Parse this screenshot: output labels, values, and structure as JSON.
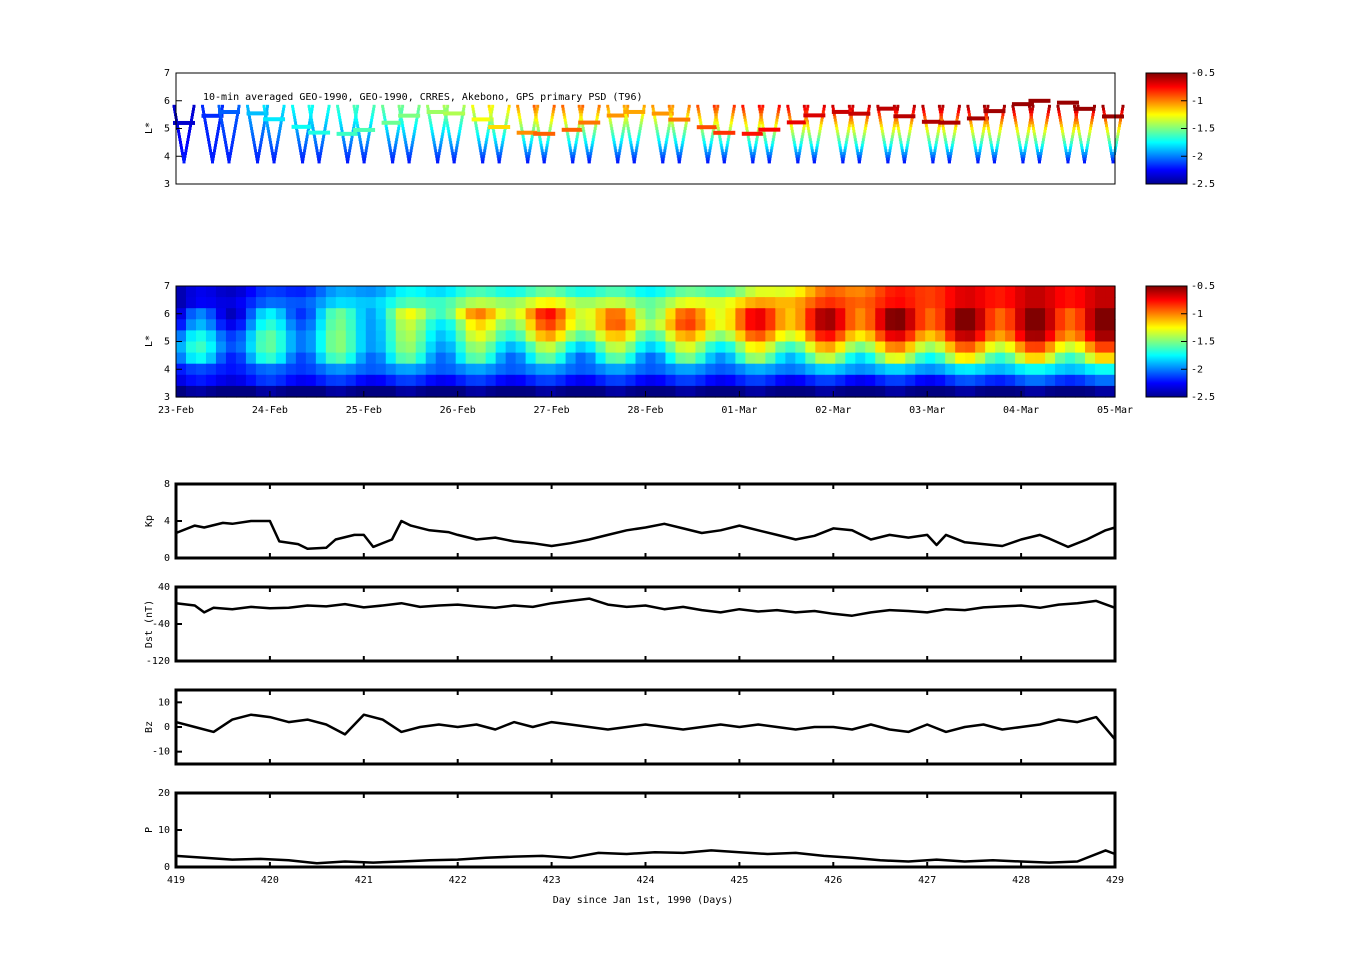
{
  "chart_data": [
    {
      "type": "heatmap",
      "title": "10-min averaged GEO-1990, GEO-1990, CRRES, Akebono, GPS  primary PSD (T96)",
      "ylabel": "L*",
      "ylim": [
        3,
        7
      ],
      "yticks": [
        "3",
        "4",
        "5",
        "6",
        "7"
      ],
      "colorbar": {
        "range": [
          -2.5,
          -0.5
        ],
        "ticks": [
          "-0.5",
          "-1",
          "-1.5",
          "-2",
          "-2.5"
        ]
      },
      "l_levels": [
        5.8,
        5.7,
        5.6,
        5.5,
        5.4,
        5.3,
        5.2,
        5.1,
        5.0,
        4.9,
        4.8,
        4.7,
        4.6,
        4.5,
        4.4,
        4.3,
        4.2,
        4.1,
        4.0,
        3.9,
        3.8
      ],
      "top_psd_by_day": [
        {
          "day": "23-Feb",
          "value": -2.4
        },
        {
          "day": "24-Feb",
          "value": -1.8
        },
        {
          "day": "25-Feb",
          "value": -1.6
        },
        {
          "day": "26-Feb",
          "value": -1.4
        },
        {
          "day": "27-Feb",
          "value": -0.9
        },
        {
          "day": "28-Feb",
          "value": -1.1
        },
        {
          "day": "01-Mar",
          "value": -0.8
        },
        {
          "day": "02-Mar",
          "value": -0.65
        },
        {
          "day": "03-Mar",
          "value": -0.6
        },
        {
          "day": "04-Mar",
          "value": -0.55
        },
        {
          "day": "05-Mar",
          "value": -0.55
        }
      ],
      "inner_psd": -2.2
    },
    {
      "type": "heatmap",
      "ylabel": "L*",
      "ylim": [
        3,
        7
      ],
      "yticks": [
        "3",
        "4",
        "5",
        "6",
        "7"
      ],
      "xticks": [
        "23-Feb",
        "24-Feb",
        "25-Feb",
        "26-Feb",
        "27-Feb",
        "28-Feb",
        "01-Mar",
        "02-Mar",
        "03-Mar",
        "04-Mar",
        "05-Mar"
      ],
      "colorbar": {
        "range": [
          -2.5,
          -0.5
        ],
        "ticks": [
          "-0.5",
          "-1",
          "-1.5",
          "-2",
          "-2.5"
        ]
      },
      "l_levels": [
        6.8,
        6.4,
        6.0,
        5.6,
        5.2,
        4.8,
        4.4,
        4.0,
        3.6,
        3.2
      ],
      "psd_by_day": [
        {
          "day": "23-Feb",
          "values": [
            -2.4,
            -2.4,
            -2.3,
            -2.2,
            -2.0,
            -1.9,
            -2.0,
            -2.2,
            -2.3,
            -2.5
          ]
        },
        {
          "day": "24-Feb",
          "values": [
            -2.2,
            -2.1,
            -2.0,
            -1.9,
            -1.8,
            -1.8,
            -1.9,
            -2.1,
            -2.2,
            -2.5
          ]
        },
        {
          "day": "25-Feb",
          "values": [
            -1.9,
            -1.8,
            -1.7,
            -1.7,
            -1.7,
            -1.7,
            -1.8,
            -2.0,
            -2.2,
            -2.5
          ]
        },
        {
          "day": "26-Feb",
          "values": [
            -1.7,
            -1.5,
            -1.3,
            -1.5,
            -1.6,
            -1.7,
            -1.8,
            -2.0,
            -2.2,
            -2.5
          ]
        },
        {
          "day": "27-Feb",
          "values": [
            -1.6,
            -1.3,
            -1.0,
            -1.1,
            -1.3,
            -1.6,
            -1.8,
            -2.0,
            -2.2,
            -2.5
          ]
        },
        {
          "day": "28-Feb",
          "values": [
            -1.7,
            -1.5,
            -1.3,
            -1.2,
            -1.4,
            -1.6,
            -1.8,
            -2.0,
            -2.2,
            -2.5
          ]
        },
        {
          "day": "01-Mar",
          "values": [
            -1.5,
            -1.2,
            -1.0,
            -1.0,
            -1.2,
            -1.5,
            -1.7,
            -2.0,
            -2.2,
            -2.5
          ]
        },
        {
          "day": "02-Mar",
          "values": [
            -1.0,
            -0.9,
            -0.8,
            -0.8,
            -1.0,
            -1.3,
            -1.6,
            -1.9,
            -2.2,
            -2.5
          ]
        },
        {
          "day": "03-Mar",
          "values": [
            -0.8,
            -0.8,
            -0.7,
            -0.7,
            -0.9,
            -1.2,
            -1.5,
            -1.9,
            -2.2,
            -2.5
          ]
        },
        {
          "day": "04-Mar",
          "values": [
            -0.7,
            -0.7,
            -0.7,
            -0.7,
            -0.8,
            -1.1,
            -1.4,
            -1.8,
            -2.1,
            -2.5
          ]
        },
        {
          "day": "05-Mar",
          "values": [
            -0.7,
            -0.7,
            -0.7,
            -0.7,
            -0.8,
            -1.1,
            -1.4,
            -1.8,
            -2.1,
            -2.5
          ]
        }
      ]
    },
    {
      "type": "line",
      "ylabel": "Kp",
      "ylim": [
        0,
        8
      ],
      "yticks": [
        "0",
        "4",
        "8"
      ],
      "x": [
        419.0,
        419.2,
        419.3,
        419.5,
        419.6,
        419.8,
        420.0,
        420.1,
        420.3,
        420.4,
        420.6,
        420.7,
        420.9,
        421.0,
        421.1,
        421.3,
        421.4,
        421.5,
        421.7,
        421.9,
        422.0,
        422.2,
        422.4,
        422.6,
        422.8,
        423.0,
        423.2,
        423.4,
        423.6,
        423.8,
        424.0,
        424.2,
        424.4,
        424.6,
        424.8,
        425.0,
        425.2,
        425.4,
        425.6,
        425.8,
        426.0,
        426.2,
        426.4,
        426.6,
        426.8,
        427.0,
        427.1,
        427.2,
        427.4,
        427.6,
        427.8,
        428.0,
        428.2,
        428.3,
        428.5,
        428.7,
        428.9,
        429.0
      ],
      "y": [
        2.7,
        3.5,
        3.3,
        3.8,
        3.7,
        4.0,
        4.0,
        1.8,
        1.5,
        1.0,
        1.1,
        2.0,
        2.5,
        2.5,
        1.2,
        2.0,
        4.0,
        3.5,
        3.0,
        2.8,
        2.5,
        2.0,
        2.2,
        1.8,
        1.6,
        1.3,
        1.6,
        2.0,
        2.5,
        3.0,
        3.3,
        3.7,
        3.2,
        2.7,
        3.0,
        3.5,
        3.0,
        2.5,
        2.0,
        2.4,
        3.2,
        3.0,
        2.0,
        2.5,
        2.2,
        2.5,
        1.4,
        2.5,
        1.7,
        1.5,
        1.3,
        2.0,
        2.5,
        2.1,
        1.2,
        2.0,
        3.0,
        3.3
      ]
    },
    {
      "type": "line",
      "ylabel": "Dst (nT)",
      "ylim": [
        -120,
        40
      ],
      "yticks": [
        "-120",
        "-40",
        "40"
      ],
      "x": [
        419.0,
        419.2,
        419.3,
        419.4,
        419.6,
        419.8,
        420.0,
        420.2,
        420.4,
        420.6,
        420.8,
        421.0,
        421.2,
        421.4,
        421.6,
        421.8,
        422.0,
        422.2,
        422.4,
        422.6,
        422.8,
        423.0,
        423.2,
        423.4,
        423.6,
        423.8,
        424.0,
        424.2,
        424.4,
        424.6,
        424.8,
        425.0,
        425.2,
        425.4,
        425.6,
        425.8,
        426.0,
        426.2,
        426.4,
        426.6,
        426.8,
        427.0,
        427.2,
        427.4,
        427.6,
        427.8,
        428.0,
        428.2,
        428.4,
        428.6,
        428.8,
        429.0
      ],
      "y": [
        5,
        0,
        -15,
        -5,
        -8,
        -3,
        -6,
        -5,
        0,
        -2,
        3,
        -4,
        0,
        5,
        -3,
        0,
        2,
        -2,
        -5,
        0,
        -3,
        5,
        10,
        15,
        2,
        -3,
        0,
        -8,
        -3,
        -10,
        -15,
        -8,
        -13,
        -10,
        -15,
        -12,
        -18,
        -22,
        -15,
        -10,
        -12,
        -15,
        -8,
        -10,
        -4,
        -2,
        0,
        -5,
        2,
        5,
        10,
        -5
      ]
    },
    {
      "type": "line",
      "ylabel": "Bz",
      "ylim": [
        -15,
        15
      ],
      "yticks": [
        "-10",
        "0",
        "10"
      ],
      "x": [
        419.0,
        419.2,
        419.4,
        419.6,
        419.8,
        420.0,
        420.2,
        420.4,
        420.6,
        420.8,
        421.0,
        421.2,
        421.4,
        421.6,
        421.8,
        422.0,
        422.2,
        422.4,
        422.6,
        422.8,
        423.0,
        423.2,
        423.4,
        423.6,
        423.8,
        424.0,
        424.2,
        424.4,
        424.6,
        424.8,
        425.0,
        425.2,
        425.4,
        425.6,
        425.8,
        426.0,
        426.2,
        426.4,
        426.6,
        426.8,
        427.0,
        427.2,
        427.4,
        427.6,
        427.8,
        428.0,
        428.2,
        428.4,
        428.6,
        428.8,
        429.0
      ],
      "y": [
        2,
        0,
        -2,
        3,
        5,
        4,
        2,
        3,
        1,
        -3,
        5,
        3,
        -2,
        0,
        1,
        0,
        1,
        -1,
        2,
        0,
        2,
        1,
        0,
        -1,
        0,
        1,
        0,
        -1,
        0,
        1,
        0,
        1,
        0,
        -1,
        0,
        0,
        -1,
        1,
        -1,
        -2,
        1,
        -2,
        0,
        1,
        -1,
        0,
        1,
        3,
        2,
        4,
        -5
      ]
    },
    {
      "type": "line",
      "ylabel": "P",
      "ylim": [
        0,
        20
      ],
      "yticks": [
        "0",
        "10",
        "20"
      ],
      "xlabel": "Day since Jan 1st, 1990 (Days)",
      "xticks": [
        "419",
        "420",
        "421",
        "422",
        "423",
        "424",
        "425",
        "426",
        "427",
        "428",
        "429"
      ],
      "x": [
        419.0,
        419.3,
        419.6,
        419.9,
        420.2,
        420.5,
        420.8,
        421.1,
        421.4,
        421.7,
        422.0,
        422.3,
        422.6,
        422.9,
        423.2,
        423.5,
        423.8,
        424.1,
        424.4,
        424.7,
        425.0,
        425.3,
        425.6,
        425.9,
        426.2,
        426.5,
        426.8,
        427.1,
        427.4,
        427.7,
        428.0,
        428.3,
        428.6,
        428.9,
        429.0
      ],
      "y": [
        3.0,
        2.5,
        2.0,
        2.2,
        1.8,
        1.0,
        1.5,
        1.2,
        1.5,
        1.8,
        2.0,
        2.5,
        2.8,
        3.0,
        2.5,
        3.8,
        3.5,
        4.0,
        3.8,
        4.5,
        4.0,
        3.5,
        3.8,
        3.0,
        2.5,
        1.8,
        1.5,
        2.0,
        1.5,
        1.8,
        1.5,
        1.2,
        1.5,
        4.5,
        3.5
      ]
    }
  ]
}
